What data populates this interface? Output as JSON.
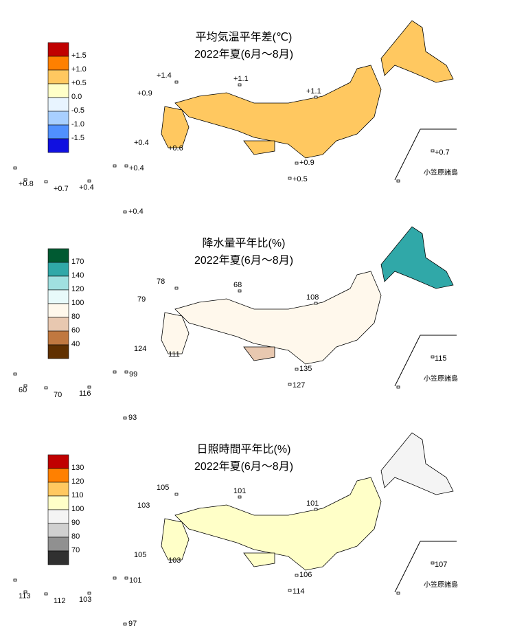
{
  "maps": [
    {
      "title": "平均気温平年差(℃)",
      "period": "2022年夏(6月～8月)",
      "legend": {
        "colors": [
          "#c00000",
          "#ff8000",
          "#ffc860",
          "#ffffc8",
          "#e8f4ff",
          "#a8cfff",
          "#5090ff",
          "#1010e0"
        ],
        "labels": [
          "+1.5",
          "+1.0",
          "+0.5",
          "0.0",
          "-0.5",
          "-1.0",
          "-1.5"
        ]
      },
      "stations": [
        "+1.4",
        "+1.1",
        "+0.9",
        "+1.1",
        "+0.4",
        "+0.6",
        "+0.7",
        "+0.9",
        "+0.4",
        "+0.8",
        "+0.7",
        "+0.4",
        "+0.5",
        "+0.4"
      ],
      "inset_label": "小笠原諸島"
    },
    {
      "title": "降水量平年比(%)",
      "period": "2022年夏(6月～8月)",
      "legend": {
        "colors": [
          "#005a32",
          "#30a8a8",
          "#a0e0e0",
          "#e8fafa",
          "#fff8ec",
          "#e8c8b0",
          "#c07840",
          "#603000"
        ],
        "labels": [
          "170",
          "140",
          "120",
          "100",
          "80",
          "60",
          "40"
        ]
      },
      "stations": [
        "78",
        "68",
        "79",
        "108",
        "124",
        "111",
        "115",
        "135",
        "99",
        "60",
        "70",
        "116",
        "127",
        "93"
      ],
      "inset_label": "小笠原諸島"
    },
    {
      "title": "日照時間平年比(%)",
      "period": "2022年夏(6月～8月)",
      "legend": {
        "colors": [
          "#c00000",
          "#ff8000",
          "#ffc860",
          "#ffffc8",
          "#f4f4f4",
          "#d0d0d0",
          "#909090",
          "#303030"
        ],
        "labels": [
          "130",
          "120",
          "110",
          "100",
          "90",
          "80",
          "70"
        ]
      },
      "stations": [
        "105",
        "101",
        "103",
        "101",
        "105",
        "103",
        "107",
        "106",
        "101",
        "113",
        "112",
        "103",
        "114",
        "97"
      ],
      "inset_label": "小笠原諸島"
    }
  ]
}
